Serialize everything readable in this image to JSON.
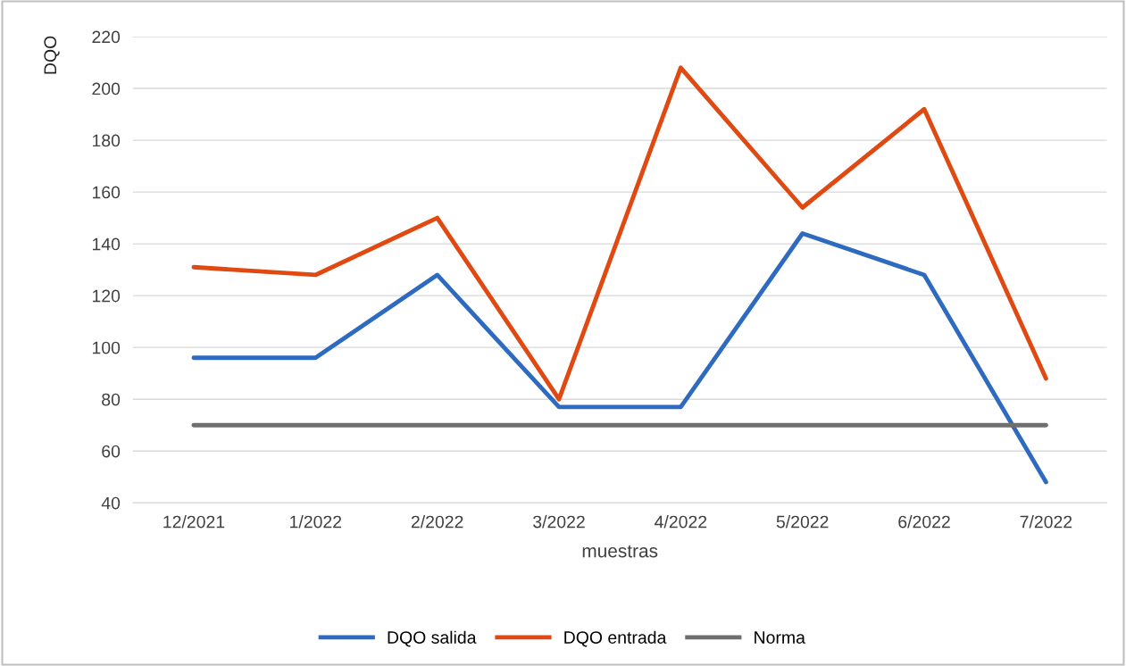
{
  "chart_data": {
    "type": "line",
    "xlabel": "muestras",
    "ylabel": "DQO",
    "categories": [
      "12/2021",
      "1/2022",
      "2/2022",
      "3/2022",
      "4/2022",
      "5/2022",
      "6/2022",
      "7/2022"
    ],
    "series": [
      {
        "name": "DQO salida",
        "color": "#2e6bc0",
        "values": [
          96,
          96,
          128,
          77,
          77,
          144,
          128,
          48
        ]
      },
      {
        "name": "DQO entrada",
        "color": "#e04a12",
        "values": [
          131,
          128,
          150,
          80,
          208,
          154,
          192,
          88
        ]
      },
      {
        "name": "Norma",
        "color": "#6f6f6f",
        "values": [
          70,
          70,
          70,
          70,
          70,
          70,
          70,
          70
        ]
      }
    ],
    "ylim": [
      40,
      220
    ],
    "yticks": [
      40,
      60,
      80,
      100,
      120,
      140,
      160,
      180,
      200,
      220
    ],
    "grid": "y",
    "legend": "bottom",
    "marker": "none",
    "line_style": "solid"
  }
}
